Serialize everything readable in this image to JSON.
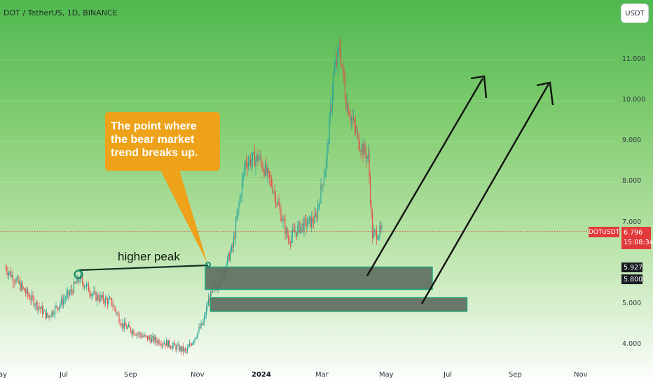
{
  "header": {
    "symbol": "DOT / TetherUS, 1D, BINANCE",
    "currency": "USDT"
  },
  "colors": {
    "up": "#26a69a",
    "down": "#e3504a",
    "zone_fill": "#5f6e62",
    "zone_border": "#1fa87a",
    "callout": "#eda21a",
    "price_line": "#e23a3a"
  },
  "price_tags": {
    "symbol": "DOTUSDT",
    "last_price": "6.796",
    "countdown": "15:08:34",
    "level_high": "5.927",
    "level_low": "5.800"
  },
  "annotations": {
    "callout": "The point where the bear market trend breaks up.",
    "higher_peak": "higher peak"
  },
  "chart_data": {
    "type": "candlestick",
    "series_name": "DOT / TetherUS",
    "interval": "1D",
    "y_ticks": [
      "11.000",
      "10.000",
      "9.000",
      "8.000",
      "7.000",
      "5.000",
      "4.000"
    ],
    "y_tick_values": [
      11,
      10,
      9,
      8,
      7,
      5,
      4
    ],
    "x_ticks": [
      "ay",
      "Jul",
      "Sep",
      "Nov",
      "2024",
      "Mar",
      "May",
      "Jul",
      "Sep",
      "Nov"
    ],
    "x_tick_bold": [
      false,
      false,
      false,
      false,
      true,
      false,
      false,
      false,
      false,
      false
    ],
    "last_price": 6.796,
    "zones": [
      {
        "label": "support-zone-1",
        "from": "2023-11-07",
        "to": "2024-06-10",
        "low": 5.37,
        "high": 5.92
      },
      {
        "label": "support-zone-2",
        "from": "2023-11-12",
        "to": "2024-07-13",
        "low": 4.83,
        "high": 5.17
      }
    ],
    "path": [
      [
        "2023-05-01",
        5.9
      ],
      [
        "2023-05-20",
        5.3
      ],
      [
        "2023-06-10",
        4.7
      ],
      [
        "2023-07-02",
        5.3
      ],
      [
        "2023-07-10",
        5.65
      ],
      [
        "2023-07-25",
        5.2
      ],
      [
        "2023-08-10",
        5.05
      ],
      [
        "2023-08-20",
        4.5
      ],
      [
        "2023-09-10",
        4.2
      ],
      [
        "2023-10-01",
        4.05
      ],
      [
        "2023-10-20",
        3.85
      ],
      [
        "2023-11-05",
        4.55
      ],
      [
        "2023-11-10",
        5.1
      ],
      [
        "2023-11-20",
        5.55
      ],
      [
        "2023-12-03",
        6.4
      ],
      [
        "2023-12-15",
        8.5
      ],
      [
        "2023-12-28",
        8.6
      ],
      [
        "2024-01-10",
        7.9
      ],
      [
        "2024-01-25",
        6.6
      ],
      [
        "2024-02-05",
        6.9
      ],
      [
        "2024-02-20",
        7.1
      ],
      [
        "2024-03-01",
        8.5
      ],
      [
        "2024-03-08",
        10.6
      ],
      [
        "2024-03-14",
        11.3
      ],
      [
        "2024-03-20",
        10.0
      ],
      [
        "2024-04-01",
        9.0
      ],
      [
        "2024-04-10",
        8.6
      ],
      [
        "2024-04-14",
        6.7
      ],
      [
        "2024-04-23",
        6.8
      ]
    ]
  }
}
